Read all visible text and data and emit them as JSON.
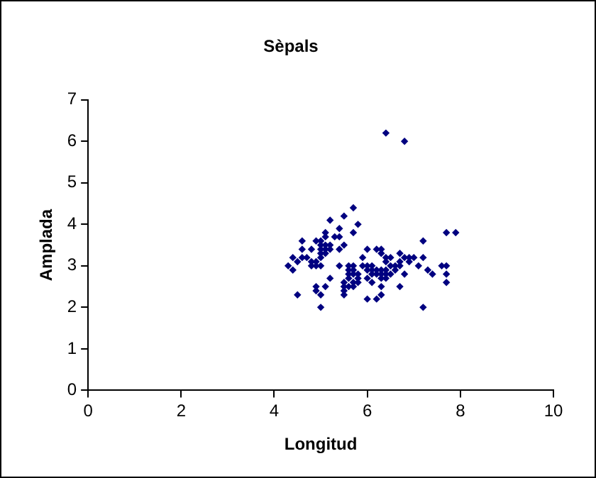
{
  "chart_data": {
    "type": "scatter",
    "title": "Sèpals",
    "xlabel": "Longitud",
    "ylabel": "Amplada",
    "xlim": [
      0,
      10
    ],
    "xticks": [
      0,
      2,
      4,
      6,
      8,
      10
    ],
    "ylim": [
      0,
      7
    ],
    "yticks": [
      0,
      1,
      2,
      3,
      4,
      5,
      6,
      7
    ],
    "grid": false,
    "legend": false,
    "marker": "diamond",
    "series": [
      {
        "color": "#000080",
        "x": [
          4.3,
          4.4,
          4.4,
          4.5,
          4.5,
          4.6,
          4.6,
          4.6,
          4.7,
          4.8,
          4.8,
          4.8,
          4.9,
          4.9,
          4.9,
          4.9,
          4.9,
          5.0,
          5.0,
          5.0,
          5.0,
          5.0,
          5.0,
          5.0,
          5.0,
          5.1,
          5.1,
          5.1,
          5.1,
          5.1,
          5.1,
          5.2,
          5.2,
          5.2,
          5.2,
          5.3,
          5.4,
          5.4,
          5.4,
          5.4,
          5.5,
          5.5,
          5.5,
          5.5,
          5.5,
          5.5,
          5.6,
          5.6,
          5.6,
          5.6,
          5.6,
          5.7,
          5.7,
          5.7,
          5.7,
          5.7,
          5.7,
          5.7,
          5.8,
          5.8,
          5.8,
          5.8,
          5.9,
          5.9,
          6.0,
          6.0,
          6.0,
          6.0,
          6.0,
          6.1,
          6.1,
          6.1,
          6.1,
          6.2,
          6.2,
          6.2,
          6.2,
          6.3,
          6.3,
          6.3,
          6.3,
          6.3,
          6.3,
          6.3,
          6.4,
          6.4,
          6.4,
          6.4,
          6.4,
          6.4,
          6.5,
          6.5,
          6.5,
          6.6,
          6.6,
          6.7,
          6.7,
          6.7,
          6.7,
          6.8,
          6.8,
          6.8,
          6.9,
          6.9,
          7.0,
          7.1,
          7.2,
          7.2,
          7.2,
          7.3,
          7.4,
          7.6,
          7.7,
          7.7,
          7.7,
          7.7,
          7.9
        ],
        "values": [
          3.0,
          2.9,
          3.2,
          3.1,
          2.3,
          3.6,
          3.4,
          3.2,
          3.2,
          3.4,
          3.1,
          3.0,
          3.6,
          3.1,
          3.0,
          2.5,
          2.4,
          3.6,
          3.5,
          3.4,
          3.3,
          3.2,
          3.0,
          2.3,
          2.0,
          3.8,
          3.7,
          3.5,
          3.4,
          3.3,
          2.5,
          4.1,
          3.5,
          3.4,
          2.7,
          3.7,
          3.9,
          3.7,
          3.4,
          3.0,
          4.2,
          3.5,
          2.6,
          2.5,
          2.4,
          2.3,
          3.0,
          2.9,
          2.8,
          2.7,
          2.5,
          4.4,
          3.8,
          3.0,
          2.9,
          2.8,
          2.6,
          2.5,
          4.0,
          2.8,
          2.7,
          2.6,
          3.2,
          3.0,
          3.4,
          3.0,
          2.9,
          2.7,
          2.2,
          3.0,
          2.9,
          2.8,
          2.6,
          3.4,
          2.9,
          2.8,
          2.2,
          3.4,
          3.3,
          2.9,
          2.8,
          2.7,
          2.5,
          2.3,
          6.2,
          3.2,
          3.1,
          2.9,
          2.8,
          2.7,
          3.2,
          3.0,
          2.8,
          3.0,
          2.9,
          3.3,
          3.1,
          3.0,
          2.5,
          6.0,
          3.2,
          2.8,
          3.2,
          3.1,
          3.2,
          3.0,
          3.6,
          3.2,
          2.0,
          2.9,
          2.8,
          3.0,
          3.8,
          3.0,
          2.8,
          2.6,
          3.8
        ]
      }
    ]
  }
}
